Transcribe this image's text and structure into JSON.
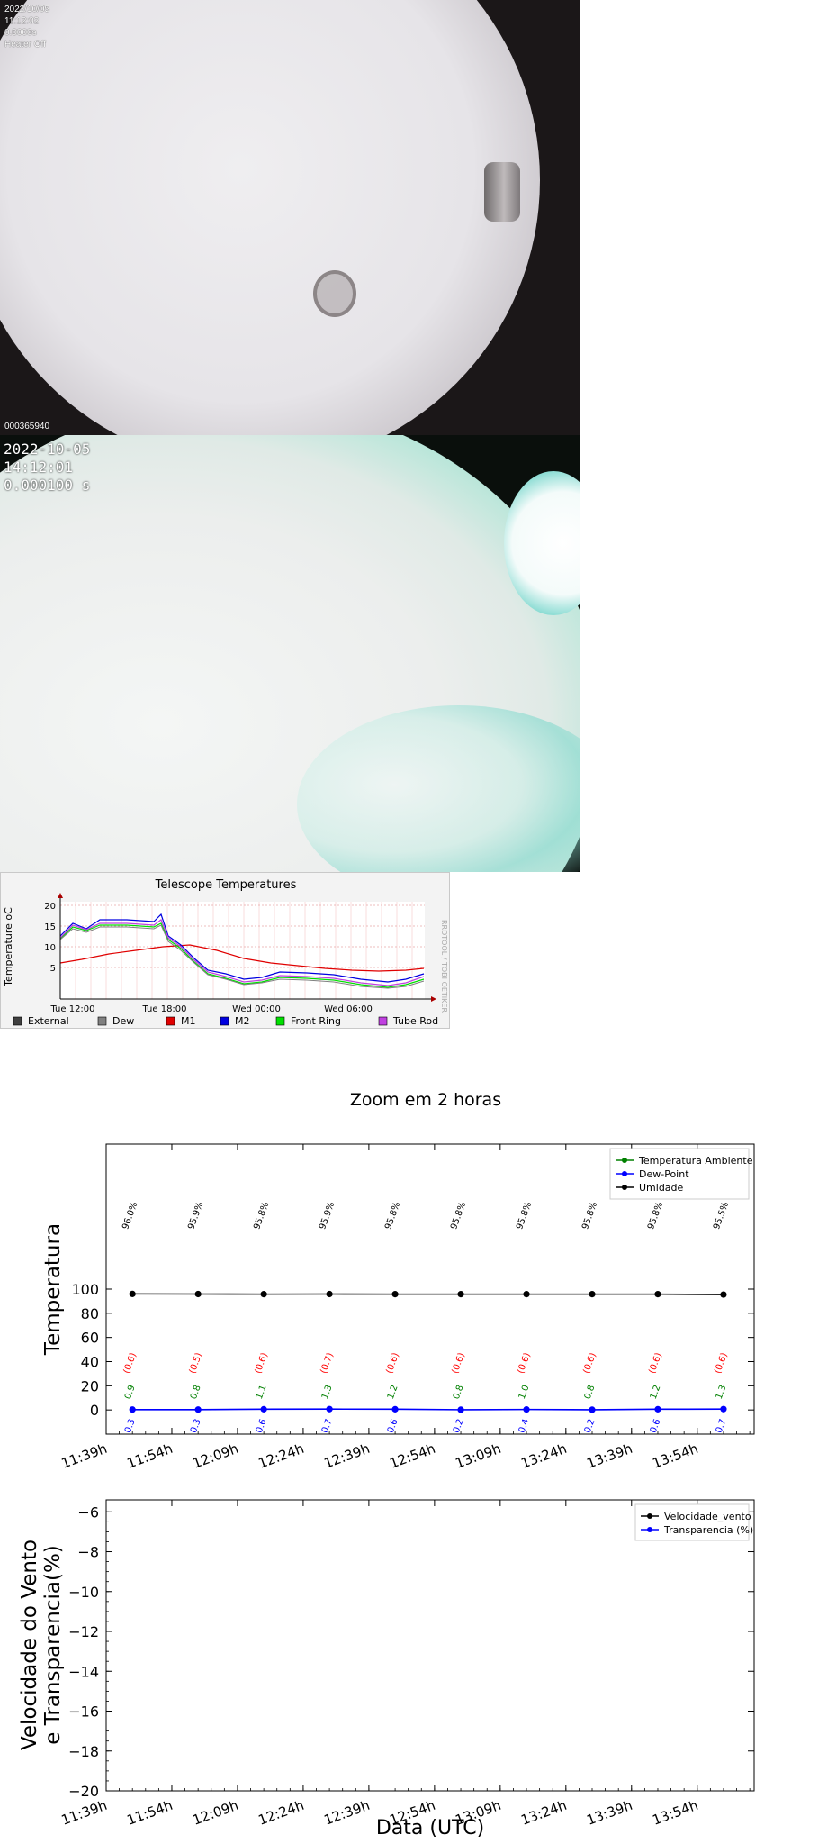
{
  "camera_top": {
    "date": "2022/10/05",
    "time": "11:12:02",
    "exposure": "0.0000s",
    "heater": "Heater Off",
    "frame_id": "000365940"
  },
  "camera_bottom": {
    "date": "2022-10-05",
    "time": "14:12:01",
    "exposure": "0.000100 s"
  },
  "telescope_panel": {
    "title": "Telescope Temperatures",
    "ylabel": "Temperature oC",
    "watermark": "RRDTOOL / TOBI OETIKER",
    "y_ticks": [
      "20",
      "15",
      "10",
      "5"
    ],
    "x_ticks": [
      "Tue 12:00",
      "Tue 18:00",
      "Wed 00:00",
      "Wed 06:00"
    ],
    "legend": [
      {
        "label": "External",
        "color": "#404040"
      },
      {
        "label": "Dew",
        "color": "#808080"
      },
      {
        "label": "M1",
        "color": "#e00000"
      },
      {
        "label": "M2",
        "color": "#0000e0"
      },
      {
        "label": "Front Ring",
        "color": "#00e000"
      },
      {
        "label": "Tube Rod",
        "color": "#c040e0"
      }
    ]
  },
  "figure": {
    "title": "Zoom em 2 horas",
    "xlabel": "Data (UTC)"
  },
  "chart_data": [
    {
      "type": "line",
      "title": "Zoom em 2 horas",
      "ylabel": "Temperatura",
      "xlabel": "",
      "ylim": [
        -20,
        220
      ],
      "y_ticks": [
        0,
        20,
        40,
        60,
        80,
        100
      ],
      "x_ticks": [
        "11:39h",
        "11:54h",
        "12:09h",
        "12:24h",
        "12:39h",
        "12:54h",
        "13:09h",
        "13:24h",
        "13:39h",
        "13:54h"
      ],
      "x_minutes": [
        0,
        15,
        30,
        45,
        60,
        75,
        90,
        105,
        120,
        135
      ],
      "xlim_minutes": [
        0,
        148
      ],
      "points_minutes": [
        6,
        21,
        36,
        51,
        66,
        81,
        96,
        111,
        126,
        141
      ],
      "legend_loc": "upper right",
      "series": [
        {
          "name": "Temperatura Ambiente",
          "color": "#008000",
          "values": [
            0.9,
            0.8,
            1.1,
            1.3,
            1.2,
            0.8,
            1.0,
            0.8,
            1.2,
            1.3
          ],
          "labels": [
            "0.9",
            "0.8",
            "1.1",
            "1.3",
            "1.2",
            "0.8",
            "1.0",
            "0.8",
            "1.2",
            "1.3"
          ],
          "visible": false
        },
        {
          "name": "Dew-Point",
          "color": "#0000ff",
          "values": [
            0.3,
            0.3,
            0.6,
            0.7,
            0.6,
            0.2,
            0.4,
            0.2,
            0.6,
            0.7
          ],
          "labels": [
            "0.3",
            "0.3",
            "0.6",
            "0.7",
            "0.6",
            "0.2",
            "0.4",
            "0.2",
            "0.6",
            "0.7"
          ]
        },
        {
          "name": "Umidade",
          "color": "#000000",
          "values": [
            96.0,
            95.9,
            95.8,
            95.9,
            95.8,
            95.8,
            95.8,
            95.8,
            95.8,
            95.5
          ],
          "labels": [
            "96.0%",
            "95.9%",
            "95.8%",
            "95.9%",
            "95.8%",
            "95.8%",
            "95.8%",
            "95.8%",
            "95.8%",
            "95.5%"
          ]
        },
        {
          "name": "",
          "color": "#ff0000",
          "values": [
            0.6,
            0.5,
            0.6,
            0.7,
            0.6,
            0.6,
            0.6,
            0.6,
            0.6,
            0.6
          ],
          "labels": [
            "(0.6)",
            "(0.5)",
            "(0.6)",
            "(0.7)",
            "(0.6)",
            "(0.6)",
            "(0.6)",
            "(0.6)",
            "(0.6)",
            "(0.6)"
          ],
          "visible": false
        }
      ]
    },
    {
      "type": "line",
      "title": "",
      "ylabel": "Velocidade do Vento\ne Transparencia(%)",
      "xlabel": "Data (UTC)",
      "ylim": [
        -20,
        -5.4
      ],
      "y_ticks": [
        -6,
        -8,
        -10,
        -12,
        -14,
        -16,
        -18,
        -20
      ],
      "x_ticks": [
        "11:39h",
        "11:54h",
        "12:09h",
        "12:24h",
        "12:39h",
        "12:54h",
        "13:09h",
        "13:24h",
        "13:39h",
        "13:54h"
      ],
      "x_minutes": [
        0,
        15,
        30,
        45,
        60,
        75,
        90,
        105,
        120,
        135
      ],
      "xlim_minutes": [
        0,
        148
      ],
      "legend_loc": "upper right",
      "series": [
        {
          "name": "Velocidade_vento",
          "color": "#000000",
          "values": []
        },
        {
          "name": "Transparencia (%)",
          "color": "#0000ff",
          "values": []
        }
      ]
    }
  ]
}
